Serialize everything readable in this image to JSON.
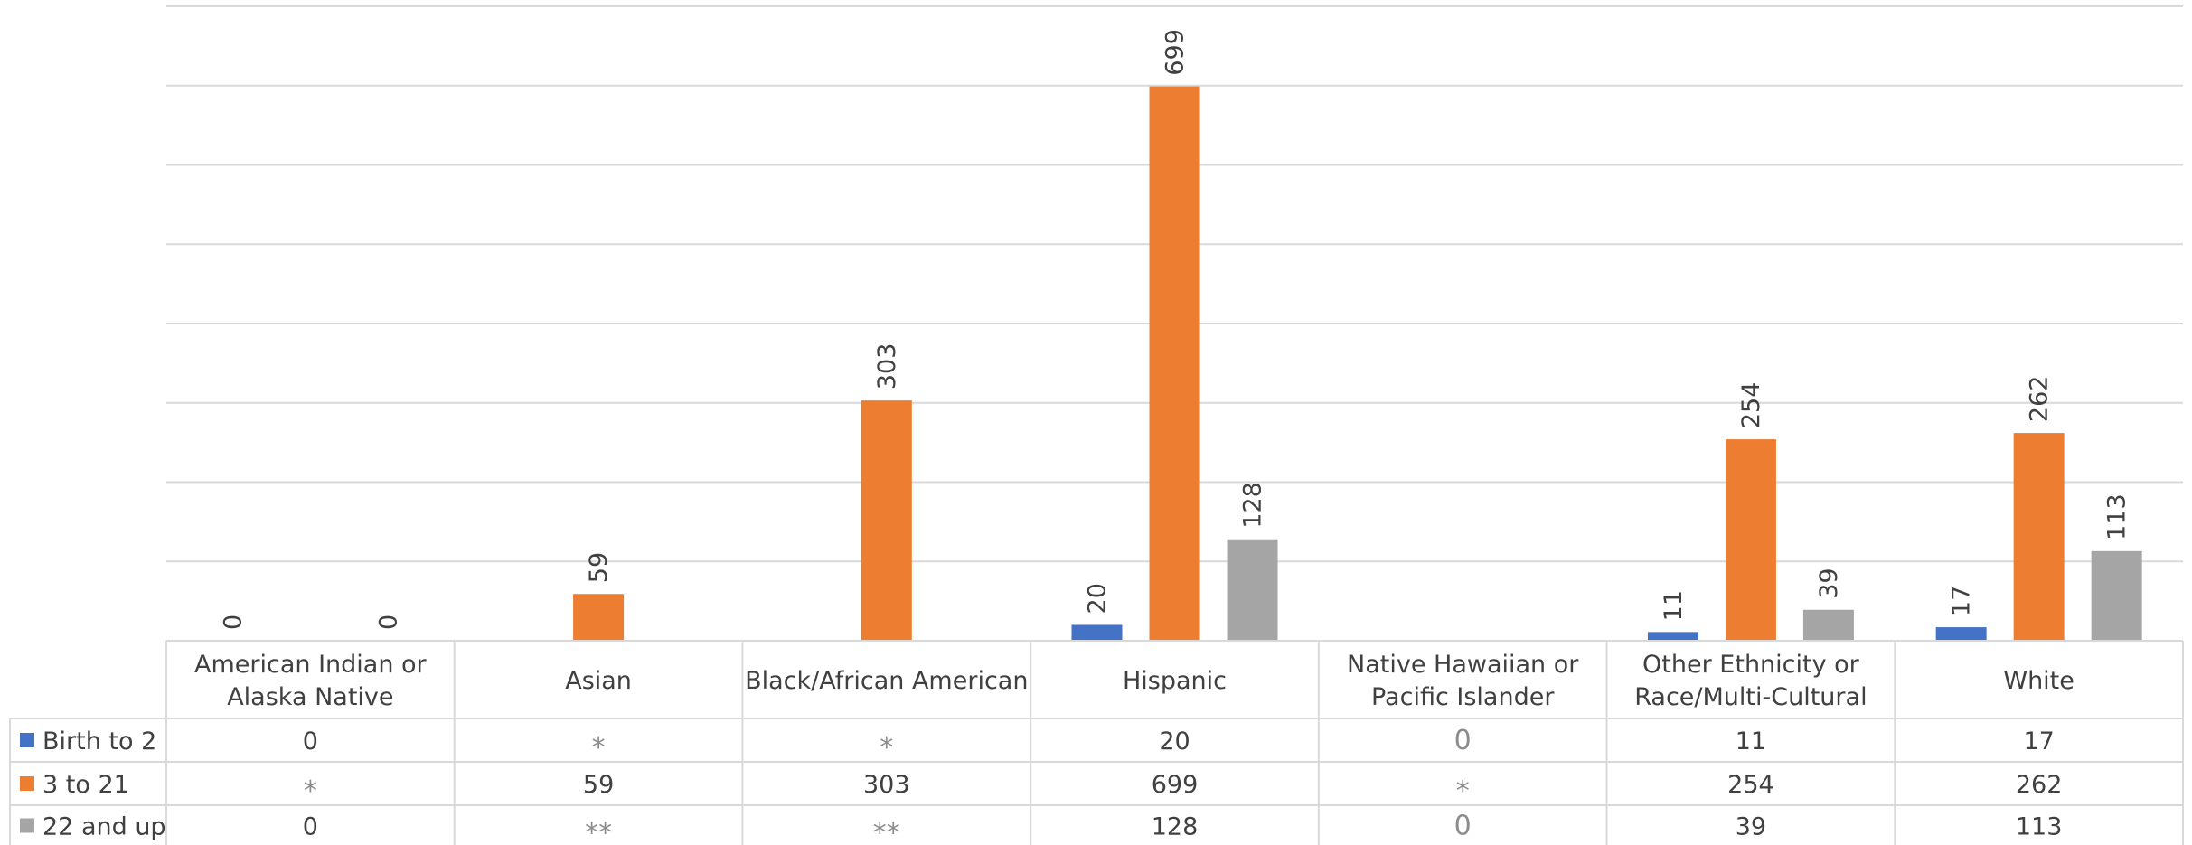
{
  "chart_data": {
    "type": "bar",
    "title": "",
    "xlabel": "",
    "ylabel": "",
    "ylim": [
      0,
      800
    ],
    "grid": true,
    "legend": "data-table-left",
    "categories": [
      "American Indian or Alaska Native",
      "Asian",
      "Black/African American",
      "Hispanic",
      "Native Hawaiian or Pacific Islander",
      "Other Ethnicity or Race/Multi-Cultural",
      "White"
    ],
    "series": [
      {
        "name": "Birth to 2",
        "color": "#4472C4",
        "values": [
          0,
          null,
          null,
          20,
          0,
          11,
          17
        ],
        "table": [
          "0",
          "*",
          "*",
          "20",
          "0",
          "11",
          "17"
        ]
      },
      {
        "name": "3 to 21",
        "color": "#ED7D31",
        "values": [
          null,
          59,
          303,
          699,
          null,
          254,
          262
        ],
        "table": [
          "*",
          "59",
          "303",
          "699",
          "*",
          "254",
          "262"
        ]
      },
      {
        "name": "22 and up",
        "color": "#A5A5A5",
        "values": [
          0,
          null,
          null,
          128,
          0,
          39,
          113
        ],
        "table": [
          "0",
          "**",
          "**",
          "128",
          "0",
          "39",
          "113"
        ]
      }
    ],
    "data_labels": [
      [
        "0",
        "",
        "",
        "20",
        "",
        "11",
        "17"
      ],
      [
        "",
        "59",
        "303",
        "699",
        "",
        "254",
        "262"
      ],
      [
        "0",
        "",
        "",
        "128",
        "",
        "39",
        "113"
      ]
    ]
  }
}
